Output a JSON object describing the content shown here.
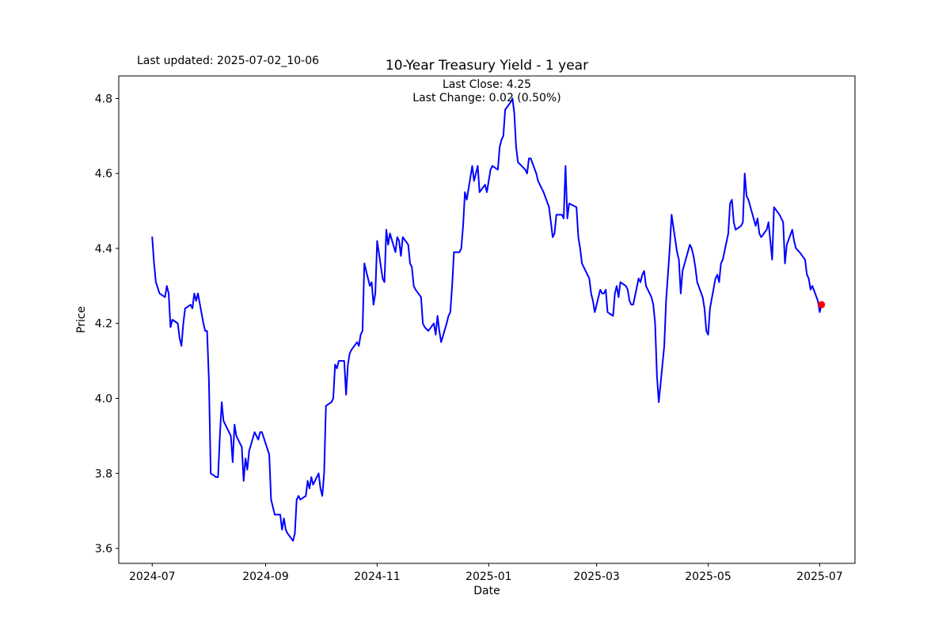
{
  "window": {
    "background": "#ffffff",
    "text_color": "#000000"
  },
  "header": {
    "last_updated": "Last updated: 2025-07-02_10-06",
    "title": "10-Year Treasury Yield - 1 year",
    "annotation_line1": "Last Close: 4.25",
    "annotation_line2": "Last Change: 0.02 (0.50%)"
  },
  "chart_data": {
    "type": "line",
    "title": "10-Year Treasury Yield - 1 year",
    "xlabel": "Date",
    "ylabel": "Price",
    "grid": false,
    "legend": "none",
    "line_color": "#0000ff",
    "line_width": 2,
    "marker_color": "#ff0000",
    "last_close": 4.25,
    "last_change_abs": 0.02,
    "last_change_pct": "0.50%",
    "epoch": "2024-07-01",
    "xlim_days_from_epoch": [
      -18.3,
      384.3
    ],
    "ylim": [
      3.56,
      4.86
    ],
    "x_tick_labels": [
      "2024-07",
      "2024-09",
      "2024-11",
      "2025-01",
      "2025-03",
      "2025-05",
      "2025-07"
    ],
    "y_tick_labels": [
      "3.6",
      "3.8",
      "4.0",
      "4.2",
      "4.4",
      "4.6",
      "4.8"
    ],
    "end_marker": {
      "date": "2025-07-02",
      "value": 4.25
    },
    "series": [
      {
        "name": "10-Year Treasury Yield",
        "color": "#0000ff",
        "points": [
          [
            "2024-07-01",
            4.43
          ],
          [
            "2024-07-02",
            4.36
          ],
          [
            "2024-07-03",
            4.31
          ],
          [
            "2024-07-05",
            4.28
          ],
          [
            "2024-07-08",
            4.27
          ],
          [
            "2024-07-09",
            4.3
          ],
          [
            "2024-07-10",
            4.28
          ],
          [
            "2024-07-11",
            4.19
          ],
          [
            "2024-07-12",
            4.21
          ],
          [
            "2024-07-15",
            4.2
          ],
          [
            "2024-07-16",
            4.16
          ],
          [
            "2024-07-17",
            4.14
          ],
          [
            "2024-07-18",
            4.2
          ],
          [
            "2024-07-19",
            4.24
          ],
          [
            "2024-07-22",
            4.25
          ],
          [
            "2024-07-23",
            4.24
          ],
          [
            "2024-07-24",
            4.28
          ],
          [
            "2024-07-25",
            4.26
          ],
          [
            "2024-07-26",
            4.28
          ],
          [
            "2024-07-29",
            4.2
          ],
          [
            "2024-07-30",
            4.18
          ],
          [
            "2024-07-31",
            4.18
          ],
          [
            "2024-08-01",
            4.05
          ],
          [
            "2024-08-02",
            3.8
          ],
          [
            "2024-08-05",
            3.79
          ],
          [
            "2024-08-06",
            3.79
          ],
          [
            "2024-08-07",
            3.9
          ],
          [
            "2024-08-08",
            3.99
          ],
          [
            "2024-08-09",
            3.94
          ],
          [
            "2024-08-12",
            3.91
          ],
          [
            "2024-08-13",
            3.9
          ],
          [
            "2024-08-14",
            3.83
          ],
          [
            "2024-08-15",
            3.93
          ],
          [
            "2024-08-16",
            3.9
          ],
          [
            "2024-08-19",
            3.87
          ],
          [
            "2024-08-20",
            3.78
          ],
          [
            "2024-08-21",
            3.84
          ],
          [
            "2024-08-22",
            3.81
          ],
          [
            "2024-08-23",
            3.86
          ],
          [
            "2024-08-26",
            3.91
          ],
          [
            "2024-08-27",
            3.9
          ],
          [
            "2024-08-28",
            3.89
          ],
          [
            "2024-08-29",
            3.91
          ],
          [
            "2024-08-30",
            3.91
          ],
          [
            "2024-09-03",
            3.85
          ],
          [
            "2024-09-04",
            3.73
          ],
          [
            "2024-09-05",
            3.71
          ],
          [
            "2024-09-06",
            3.69
          ],
          [
            "2024-09-09",
            3.69
          ],
          [
            "2024-09-10",
            3.65
          ],
          [
            "2024-09-11",
            3.68
          ],
          [
            "2024-09-12",
            3.65
          ],
          [
            "2024-09-13",
            3.64
          ],
          [
            "2024-09-16",
            3.62
          ],
          [
            "2024-09-17",
            3.64
          ],
          [
            "2024-09-18",
            3.73
          ],
          [
            "2024-09-19",
            3.74
          ],
          [
            "2024-09-20",
            3.73
          ],
          [
            "2024-09-23",
            3.74
          ],
          [
            "2024-09-24",
            3.78
          ],
          [
            "2024-09-25",
            3.76
          ],
          [
            "2024-09-26",
            3.79
          ],
          [
            "2024-09-27",
            3.77
          ],
          [
            "2024-09-30",
            3.8
          ],
          [
            "2024-10-01",
            3.76
          ],
          [
            "2024-10-02",
            3.74
          ],
          [
            "2024-10-03",
            3.8
          ],
          [
            "2024-10-04",
            3.98
          ],
          [
            "2024-10-07",
            3.99
          ],
          [
            "2024-10-08",
            4.0
          ],
          [
            "2024-10-09",
            4.09
          ],
          [
            "2024-10-10",
            4.08
          ],
          [
            "2024-10-11",
            4.1
          ],
          [
            "2024-10-14",
            4.1
          ],
          [
            "2024-10-15",
            4.01
          ],
          [
            "2024-10-16",
            4.09
          ],
          [
            "2024-10-17",
            4.12
          ],
          [
            "2024-10-18",
            4.13
          ],
          [
            "2024-10-21",
            4.15
          ],
          [
            "2024-10-22",
            4.14
          ],
          [
            "2024-10-23",
            4.17
          ],
          [
            "2024-10-24",
            4.18
          ],
          [
            "2024-10-25",
            4.36
          ],
          [
            "2024-10-28",
            4.3
          ],
          [
            "2024-10-29",
            4.31
          ],
          [
            "2024-10-30",
            4.25
          ],
          [
            "2024-10-31",
            4.28
          ],
          [
            "2024-11-01",
            4.42
          ],
          [
            "2024-11-04",
            4.32
          ],
          [
            "2024-11-05",
            4.31
          ],
          [
            "2024-11-06",
            4.45
          ],
          [
            "2024-11-07",
            4.41
          ],
          [
            "2024-11-08",
            4.44
          ],
          [
            "2024-11-11",
            4.39
          ],
          [
            "2024-11-12",
            4.43
          ],
          [
            "2024-11-13",
            4.42
          ],
          [
            "2024-11-14",
            4.38
          ],
          [
            "2024-11-15",
            4.43
          ],
          [
            "2024-11-18",
            4.41
          ],
          [
            "2024-11-19",
            4.36
          ],
          [
            "2024-11-20",
            4.35
          ],
          [
            "2024-11-21",
            4.3
          ],
          [
            "2024-11-22",
            4.29
          ],
          [
            "2024-11-25",
            4.27
          ],
          [
            "2024-11-26",
            4.2
          ],
          [
            "2024-11-27",
            4.19
          ],
          [
            "2024-11-29",
            4.18
          ],
          [
            "2024-12-02",
            4.2
          ],
          [
            "2024-12-03",
            4.17
          ],
          [
            "2024-12-04",
            4.22
          ],
          [
            "2024-12-05",
            4.18
          ],
          [
            "2024-12-06",
            4.15
          ],
          [
            "2024-12-09",
            4.2
          ],
          [
            "2024-12-10",
            4.22
          ],
          [
            "2024-12-11",
            4.23
          ],
          [
            "2024-12-12",
            4.3
          ],
          [
            "2024-12-13",
            4.39
          ],
          [
            "2024-12-16",
            4.39
          ],
          [
            "2024-12-17",
            4.4
          ],
          [
            "2024-12-18",
            4.46
          ],
          [
            "2024-12-19",
            4.55
          ],
          [
            "2024-12-20",
            4.53
          ],
          [
            "2024-12-23",
            4.62
          ],
          [
            "2024-12-24",
            4.58
          ],
          [
            "2024-12-26",
            4.62
          ],
          [
            "2024-12-27",
            4.55
          ],
          [
            "2024-12-30",
            4.57
          ],
          [
            "2024-12-31",
            4.55
          ],
          [
            "2025-01-02",
            4.61
          ],
          [
            "2025-01-03",
            4.62
          ],
          [
            "2025-01-06",
            4.61
          ],
          [
            "2025-01-07",
            4.67
          ],
          [
            "2025-01-08",
            4.69
          ],
          [
            "2025-01-09",
            4.7
          ],
          [
            "2025-01-10",
            4.77
          ],
          [
            "2025-01-13",
            4.79
          ],
          [
            "2025-01-14",
            4.8
          ],
          [
            "2025-01-15",
            4.76
          ],
          [
            "2025-01-16",
            4.67
          ],
          [
            "2025-01-17",
            4.63
          ],
          [
            "2025-01-21",
            4.61
          ],
          [
            "2025-01-22",
            4.6
          ],
          [
            "2025-01-23",
            4.64
          ],
          [
            "2025-01-24",
            4.64
          ],
          [
            "2025-01-27",
            4.6
          ],
          [
            "2025-01-28",
            4.58
          ],
          [
            "2025-01-29",
            4.57
          ],
          [
            "2025-01-30",
            4.56
          ],
          [
            "2025-01-31",
            4.55
          ],
          [
            "2025-02-03",
            4.51
          ],
          [
            "2025-02-04",
            4.47
          ],
          [
            "2025-02-05",
            4.43
          ],
          [
            "2025-02-06",
            4.44
          ],
          [
            "2025-02-07",
            4.49
          ],
          [
            "2025-02-10",
            4.49
          ],
          [
            "2025-02-11",
            4.48
          ],
          [
            "2025-02-12",
            4.62
          ],
          [
            "2025-02-13",
            4.48
          ],
          [
            "2025-02-14",
            4.52
          ],
          [
            "2025-02-18",
            4.51
          ],
          [
            "2025-02-19",
            4.43
          ],
          [
            "2025-02-20",
            4.4
          ],
          [
            "2025-02-21",
            4.36
          ],
          [
            "2025-02-24",
            4.33
          ],
          [
            "2025-02-25",
            4.32
          ],
          [
            "2025-02-26",
            4.28
          ],
          [
            "2025-02-27",
            4.26
          ],
          [
            "2025-02-28",
            4.23
          ],
          [
            "2025-03-03",
            4.29
          ],
          [
            "2025-03-04",
            4.28
          ],
          [
            "2025-03-05",
            4.28
          ],
          [
            "2025-03-06",
            4.29
          ],
          [
            "2025-03-07",
            4.23
          ],
          [
            "2025-03-10",
            4.22
          ],
          [
            "2025-03-11",
            4.28
          ],
          [
            "2025-03-12",
            4.3
          ],
          [
            "2025-03-13",
            4.27
          ],
          [
            "2025-03-14",
            4.31
          ],
          [
            "2025-03-17",
            4.3
          ],
          [
            "2025-03-18",
            4.29
          ],
          [
            "2025-03-19",
            4.26
          ],
          [
            "2025-03-20",
            4.25
          ],
          [
            "2025-03-21",
            4.25
          ],
          [
            "2025-03-24",
            4.32
          ],
          [
            "2025-03-25",
            4.31
          ],
          [
            "2025-03-26",
            4.33
          ],
          [
            "2025-03-27",
            4.34
          ],
          [
            "2025-03-28",
            4.3
          ],
          [
            "2025-03-31",
            4.27
          ],
          [
            "2025-04-01",
            4.25
          ],
          [
            "2025-04-02",
            4.2
          ],
          [
            "2025-04-03",
            4.06
          ],
          [
            "2025-04-04",
            3.99
          ],
          [
            "2025-04-07",
            4.14
          ],
          [
            "2025-04-08",
            4.26
          ],
          [
            "2025-04-09",
            4.33
          ],
          [
            "2025-04-10",
            4.4
          ],
          [
            "2025-04-11",
            4.49
          ],
          [
            "2025-04-14",
            4.39
          ],
          [
            "2025-04-15",
            4.37
          ],
          [
            "2025-04-16",
            4.28
          ],
          [
            "2025-04-17",
            4.34
          ],
          [
            "2025-04-21",
            4.41
          ],
          [
            "2025-04-22",
            4.4
          ],
          [
            "2025-04-23",
            4.38
          ],
          [
            "2025-04-24",
            4.35
          ],
          [
            "2025-04-25",
            4.31
          ],
          [
            "2025-04-28",
            4.27
          ],
          [
            "2025-04-29",
            4.24
          ],
          [
            "2025-04-30",
            4.18
          ],
          [
            "2025-05-01",
            4.17
          ],
          [
            "2025-05-02",
            4.24
          ],
          [
            "2025-05-05",
            4.32
          ],
          [
            "2025-05-06",
            4.33
          ],
          [
            "2025-05-07",
            4.31
          ],
          [
            "2025-05-08",
            4.36
          ],
          [
            "2025-05-09",
            4.37
          ],
          [
            "2025-05-12",
            4.44
          ],
          [
            "2025-05-13",
            4.52
          ],
          [
            "2025-05-14",
            4.53
          ],
          [
            "2025-05-15",
            4.47
          ],
          [
            "2025-05-16",
            4.45
          ],
          [
            "2025-05-19",
            4.46
          ],
          [
            "2025-05-20",
            4.47
          ],
          [
            "2025-05-21",
            4.6
          ],
          [
            "2025-05-22",
            4.54
          ],
          [
            "2025-05-23",
            4.53
          ],
          [
            "2025-05-27",
            4.46
          ],
          [
            "2025-05-28",
            4.48
          ],
          [
            "2025-05-29",
            4.44
          ],
          [
            "2025-05-30",
            4.43
          ],
          [
            "2025-06-02",
            4.45
          ],
          [
            "2025-06-03",
            4.47
          ],
          [
            "2025-06-04",
            4.42
          ],
          [
            "2025-06-05",
            4.37
          ],
          [
            "2025-06-06",
            4.51
          ],
          [
            "2025-06-09",
            4.49
          ],
          [
            "2025-06-10",
            4.48
          ],
          [
            "2025-06-11",
            4.47
          ],
          [
            "2025-06-12",
            4.36
          ],
          [
            "2025-06-13",
            4.41
          ],
          [
            "2025-06-16",
            4.45
          ],
          [
            "2025-06-17",
            4.42
          ],
          [
            "2025-06-18",
            4.4
          ],
          [
            "2025-06-20",
            4.39
          ],
          [
            "2025-06-23",
            4.37
          ],
          [
            "2025-06-24",
            4.33
          ],
          [
            "2025-06-25",
            4.32
          ],
          [
            "2025-06-26",
            4.29
          ],
          [
            "2025-06-27",
            4.3
          ],
          [
            "2025-06-30",
            4.26
          ],
          [
            "2025-07-01",
            4.23
          ],
          [
            "2025-07-02",
            4.25
          ]
        ]
      }
    ]
  }
}
